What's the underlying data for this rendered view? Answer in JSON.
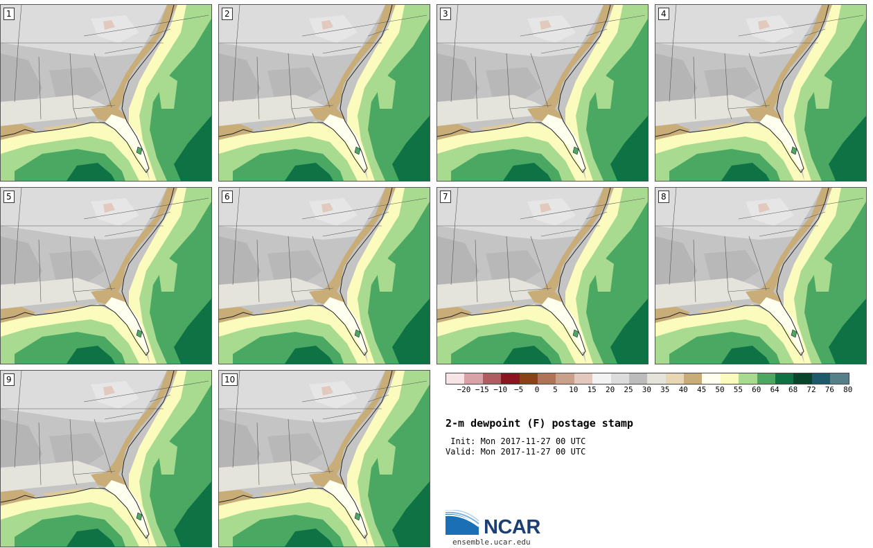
{
  "panels": [
    {
      "label": "1"
    },
    {
      "label": "2"
    },
    {
      "label": "3"
    },
    {
      "label": "4"
    },
    {
      "label": "5"
    },
    {
      "label": "6"
    },
    {
      "label": "7"
    },
    {
      "label": "8"
    },
    {
      "label": "9"
    },
    {
      "label": "10"
    }
  ],
  "colorbar": {
    "colors": [
      "#f6e4e6",
      "#d9a2a6",
      "#b25c61",
      "#8b1622",
      "#8c4216",
      "#b07357",
      "#c8a08b",
      "#e3c8bd",
      "#f3f3f3",
      "#dcdcdc",
      "#bcbcbc",
      "#e4e4dc",
      "#e7d7b5",
      "#c9ad79",
      "#fffff0",
      "#fbfbbd",
      "#a8db8f",
      "#4aa862",
      "#0f7245",
      "#08452a",
      "#1f5a6a",
      "#577f8a"
    ],
    "tick_labels": [
      "−20",
      "−15",
      "−10",
      "−5",
      "0",
      "5",
      "10",
      "15",
      "20",
      "25",
      "30",
      "35",
      "40",
      "45",
      "50",
      "55",
      "60",
      "64",
      "68",
      "72",
      "76",
      "80"
    ]
  },
  "title": "2-m dewpoint (F) postage stamp",
  "init": " Init: Mon 2017-11-27 00 UTC",
  "valid": "Valid: Mon 2017-11-27 00 UTC",
  "logo": {
    "name": "NCAR",
    "url": "ensemble.ucar.edu"
  }
}
